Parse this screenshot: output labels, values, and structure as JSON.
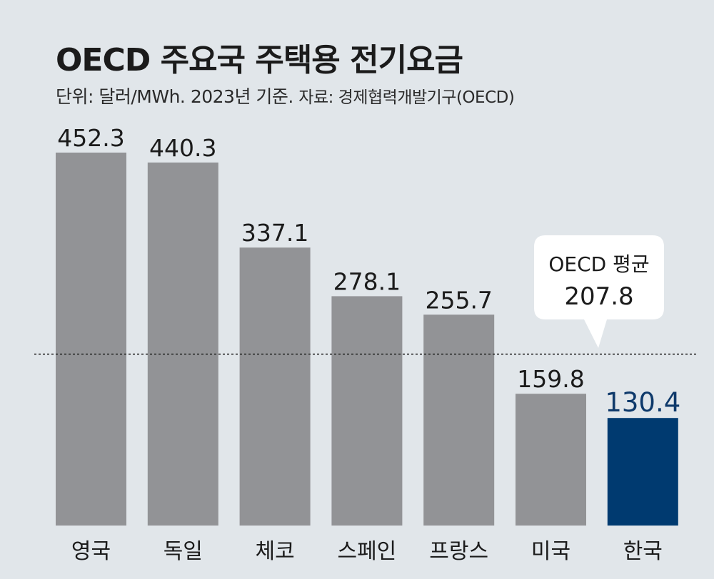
{
  "header": {
    "title": "OECD 주요국 주택용 전기요금",
    "subtitle_unit": "단위: 달러/MWh. 2023년 기준.",
    "subtitle_source": "자료: 경제협력개발기구(OECD)"
  },
  "colors": {
    "background": "#e1e6ea",
    "bar_default": "#929396",
    "bar_highlight": "#003a70",
    "text_highlight": "#0f3a6b"
  },
  "chart_data": {
    "type": "bar",
    "title": "OECD 주요국 주택용 전기요금",
    "categories": [
      "영국",
      "독일",
      "체코",
      "스페인",
      "프랑스",
      "미국",
      "한국"
    ],
    "values": [
      452.3,
      440.3,
      337.1,
      278.1,
      255.7,
      159.8,
      130.4
    ],
    "value_labels": [
      "452.3",
      "440.3",
      "337.1",
      "278.1",
      "255.7",
      "159.8",
      "130.4"
    ],
    "highlight_category": "한국",
    "ylim": [
      0,
      452.3
    ],
    "grid": false,
    "reference_line": {
      "label": "OECD 평균",
      "value": 207.8,
      "value_label": "207.8",
      "style": "dotted"
    }
  }
}
